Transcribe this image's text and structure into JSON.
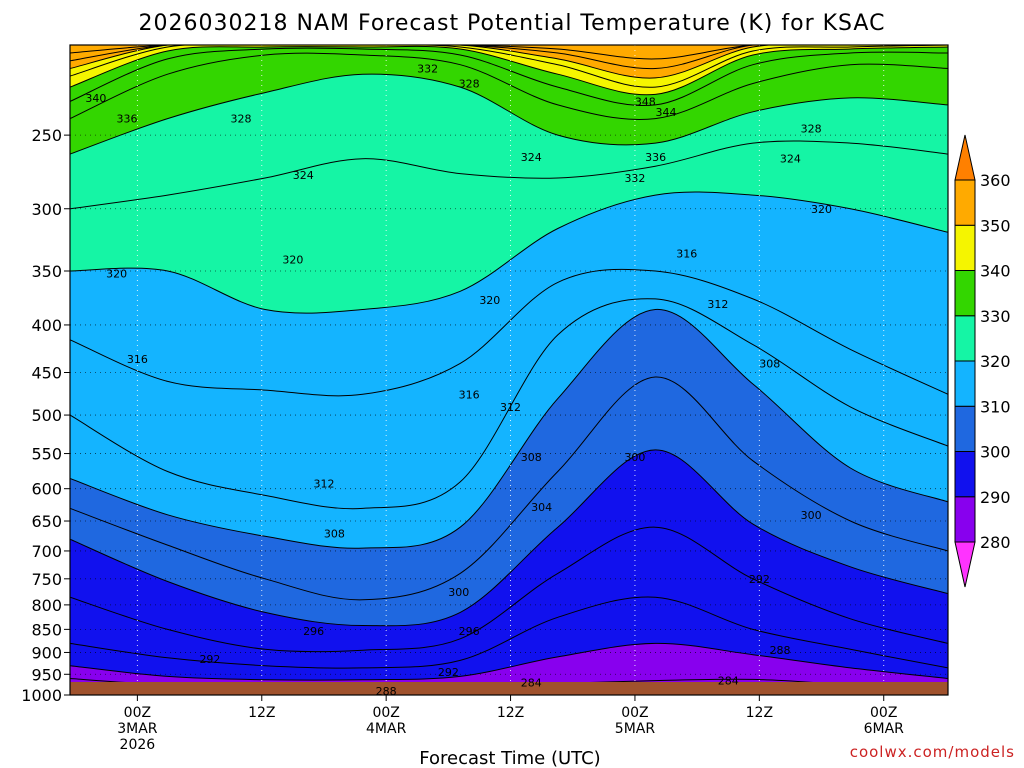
{
  "chart_data": {
    "type": "heatmap",
    "title": "2026030218 NAM Forecast Potential Temperature (K) for KSAC",
    "xlabel": "Forecast Time (UTC)",
    "ylabel": "",
    "x_ticks": [
      {
        "hour": 6,
        "lines": [
          "00Z",
          "3MAR",
          "2026"
        ]
      },
      {
        "hour": 18,
        "lines": [
          "12Z"
        ]
      },
      {
        "hour": 30,
        "lines": [
          "00Z",
          "4MAR"
        ]
      },
      {
        "hour": 42,
        "lines": [
          "12Z"
        ]
      },
      {
        "hour": 54,
        "lines": [
          "00Z",
          "5MAR"
        ]
      },
      {
        "hour": 66,
        "lines": [
          "12Z"
        ]
      },
      {
        "hour": 78,
        "lines": [
          "00Z",
          "6MAR"
        ]
      }
    ],
    "xlim_hours": [
      -0.5,
      84.2
    ],
    "y_ticks": [
      250,
      300,
      350,
      400,
      450,
      500,
      550,
      600,
      650,
      700,
      750,
      800,
      850,
      900,
      950,
      1000
    ],
    "ylim_hPa": [
      200,
      1000
    ],
    "y_scale": "log-pressure",
    "grid": true,
    "colorbar": {
      "levels": [
        280,
        290,
        300,
        310,
        320,
        330,
        340,
        350,
        360
      ],
      "colors": [
        "#ff33ff",
        "#8800ee",
        "#1111ee",
        "#1f68e0",
        "#14b4ff",
        "#15f5a5",
        "#33d600",
        "#f5f500",
        "#ffaa00",
        "#ff8000"
      ],
      "extends": "both",
      "placement": "right"
    },
    "isentropes": [
      {
        "theta": 284,
        "pressures": [
          960,
          975,
          975,
          980,
          975,
          972,
          965,
          962,
          975,
          985
        ]
      },
      {
        "theta": 288,
        "pressures": [
          930,
          955,
          963,
          963,
          955,
          910,
          880,
          905,
          935,
          960
        ]
      },
      {
        "theta": 292,
        "pressures": [
          880,
          912,
          930,
          935,
          918,
          825,
          785,
          850,
          893,
          935
        ]
      },
      {
        "theta": 296,
        "pressures": [
          785,
          850,
          893,
          895,
          870,
          740,
          660,
          750,
          828,
          880
        ]
      },
      {
        "theta": 300,
        "pressures": [
          680,
          755,
          815,
          842,
          815,
          660,
          545,
          655,
          728,
          778
        ]
      },
      {
        "theta": 304,
        "pressures": [
          630,
          690,
          750,
          790,
          740,
          575,
          455,
          560,
          650,
          700
        ]
      },
      {
        "theta": 308,
        "pressures": [
          585,
          640,
          675,
          695,
          660,
          480,
          385,
          463,
          570,
          620
        ]
      },
      {
        "theta": 312,
        "pressures": [
          500,
          575,
          610,
          630,
          590,
          410,
          375,
          420,
          490,
          540
        ]
      },
      {
        "theta": 316,
        "pressures": [
          415,
          460,
          470,
          475,
          440,
          360,
          350,
          375,
          425,
          475
        ]
      },
      {
        "theta": 320,
        "pressures": [
          350,
          350,
          385,
          385,
          368,
          315,
          290,
          290,
          300,
          318
        ]
      },
      {
        "theta": 324,
        "pressures": [
          300,
          290,
          278,
          265,
          275,
          278,
          270,
          255,
          255,
          262
        ]
      },
      {
        "theta": 328,
        "pressures": [
          262,
          240,
          225,
          215,
          222,
          250,
          255,
          236,
          228,
          232
        ]
      },
      {
        "theta": 332,
        "pressures": [
          240,
          215,
          205,
          205,
          210,
          232,
          240,
          220,
          210,
          212
        ]
      },
      {
        "theta": 336,
        "pressures": [
          230,
          207,
          202,
          202,
          205,
          222,
          232,
          210,
          204,
          204
        ]
      },
      {
        "theta": 340,
        "pressures": [
          222,
          203,
          201,
          201,
          202,
          215,
          226,
          205,
          202,
          201
        ]
      },
      {
        "theta": 344,
        "pressures": [
          216,
          201,
          200,
          200,
          201,
          210,
          222,
          203,
          201,
          200
        ]
      },
      {
        "theta": 348,
        "pressures": [
          212,
          200,
          200,
          200,
          200,
          207,
          217,
          201,
          200,
          200
        ]
      },
      {
        "theta": 352,
        "pressures": [
          208,
          200,
          200,
          200,
          200,
          204,
          212,
          200,
          200,
          200
        ]
      },
      {
        "theta": 356,
        "pressures": [
          204,
          200,
          200,
          200,
          200,
          202,
          207,
          200,
          200,
          200
        ]
      }
    ],
    "contour_labels": [
      {
        "text": "332",
        "hour": 34,
        "p": 212
      },
      {
        "text": "328",
        "hour": 38,
        "p": 220
      },
      {
        "text": "340",
        "hour": 2,
        "p": 228
      },
      {
        "text": "336",
        "hour": 5,
        "p": 240
      },
      {
        "text": "328",
        "hour": 16,
        "p": 240
      },
      {
        "text": "348",
        "hour": 55,
        "p": 230
      },
      {
        "text": "344",
        "hour": 57,
        "p": 236
      },
      {
        "text": "336",
        "hour": 56,
        "p": 264
      },
      {
        "text": "332",
        "hour": 54,
        "p": 278
      },
      {
        "text": "324",
        "hour": 44,
        "p": 264
      },
      {
        "text": "324",
        "hour": 22,
        "p": 276
      },
      {
        "text": "328",
        "hour": 71,
        "p": 246
      },
      {
        "text": "324",
        "hour": 69,
        "p": 265
      },
      {
        "text": "320",
        "hour": 72,
        "p": 300
      },
      {
        "text": "316",
        "hour": 59,
        "p": 335
      },
      {
        "text": "320",
        "hour": 21,
        "p": 340
      },
      {
        "text": "320",
        "hour": 4,
        "p": 352
      },
      {
        "text": "320",
        "hour": 40,
        "p": 376
      },
      {
        "text": "312",
        "hour": 62,
        "p": 380
      },
      {
        "text": "316",
        "hour": 6,
        "p": 435
      },
      {
        "text": "308",
        "hour": 67,
        "p": 440
      },
      {
        "text": "316",
        "hour": 38,
        "p": 475
      },
      {
        "text": "312",
        "hour": 42,
        "p": 490
      },
      {
        "text": "308",
        "hour": 44,
        "p": 555
      },
      {
        "text": "300",
        "hour": 54,
        "p": 555
      },
      {
        "text": "312",
        "hour": 24,
        "p": 592
      },
      {
        "text": "304",
        "hour": 45,
        "p": 628
      },
      {
        "text": "300",
        "hour": 71,
        "p": 640
      },
      {
        "text": "308",
        "hour": 25,
        "p": 670
      },
      {
        "text": "292",
        "hour": 66,
        "p": 750
      },
      {
        "text": "300",
        "hour": 37,
        "p": 775
      },
      {
        "text": "296",
        "hour": 23,
        "p": 853
      },
      {
        "text": "296",
        "hour": 38,
        "p": 853
      },
      {
        "text": "288",
        "hour": 68,
        "p": 895
      },
      {
        "text": "292",
        "hour": 13,
        "p": 915
      },
      {
        "text": "292",
        "hour": 36,
        "p": 945
      },
      {
        "text": "284",
        "hour": 44,
        "p": 970
      },
      {
        "text": "284",
        "hour": 63,
        "p": 965
      },
      {
        "text": "288",
        "hour": 30,
        "p": 990
      }
    ],
    "ground_color": "#a0522d"
  },
  "credit": "coolwx.com/models"
}
